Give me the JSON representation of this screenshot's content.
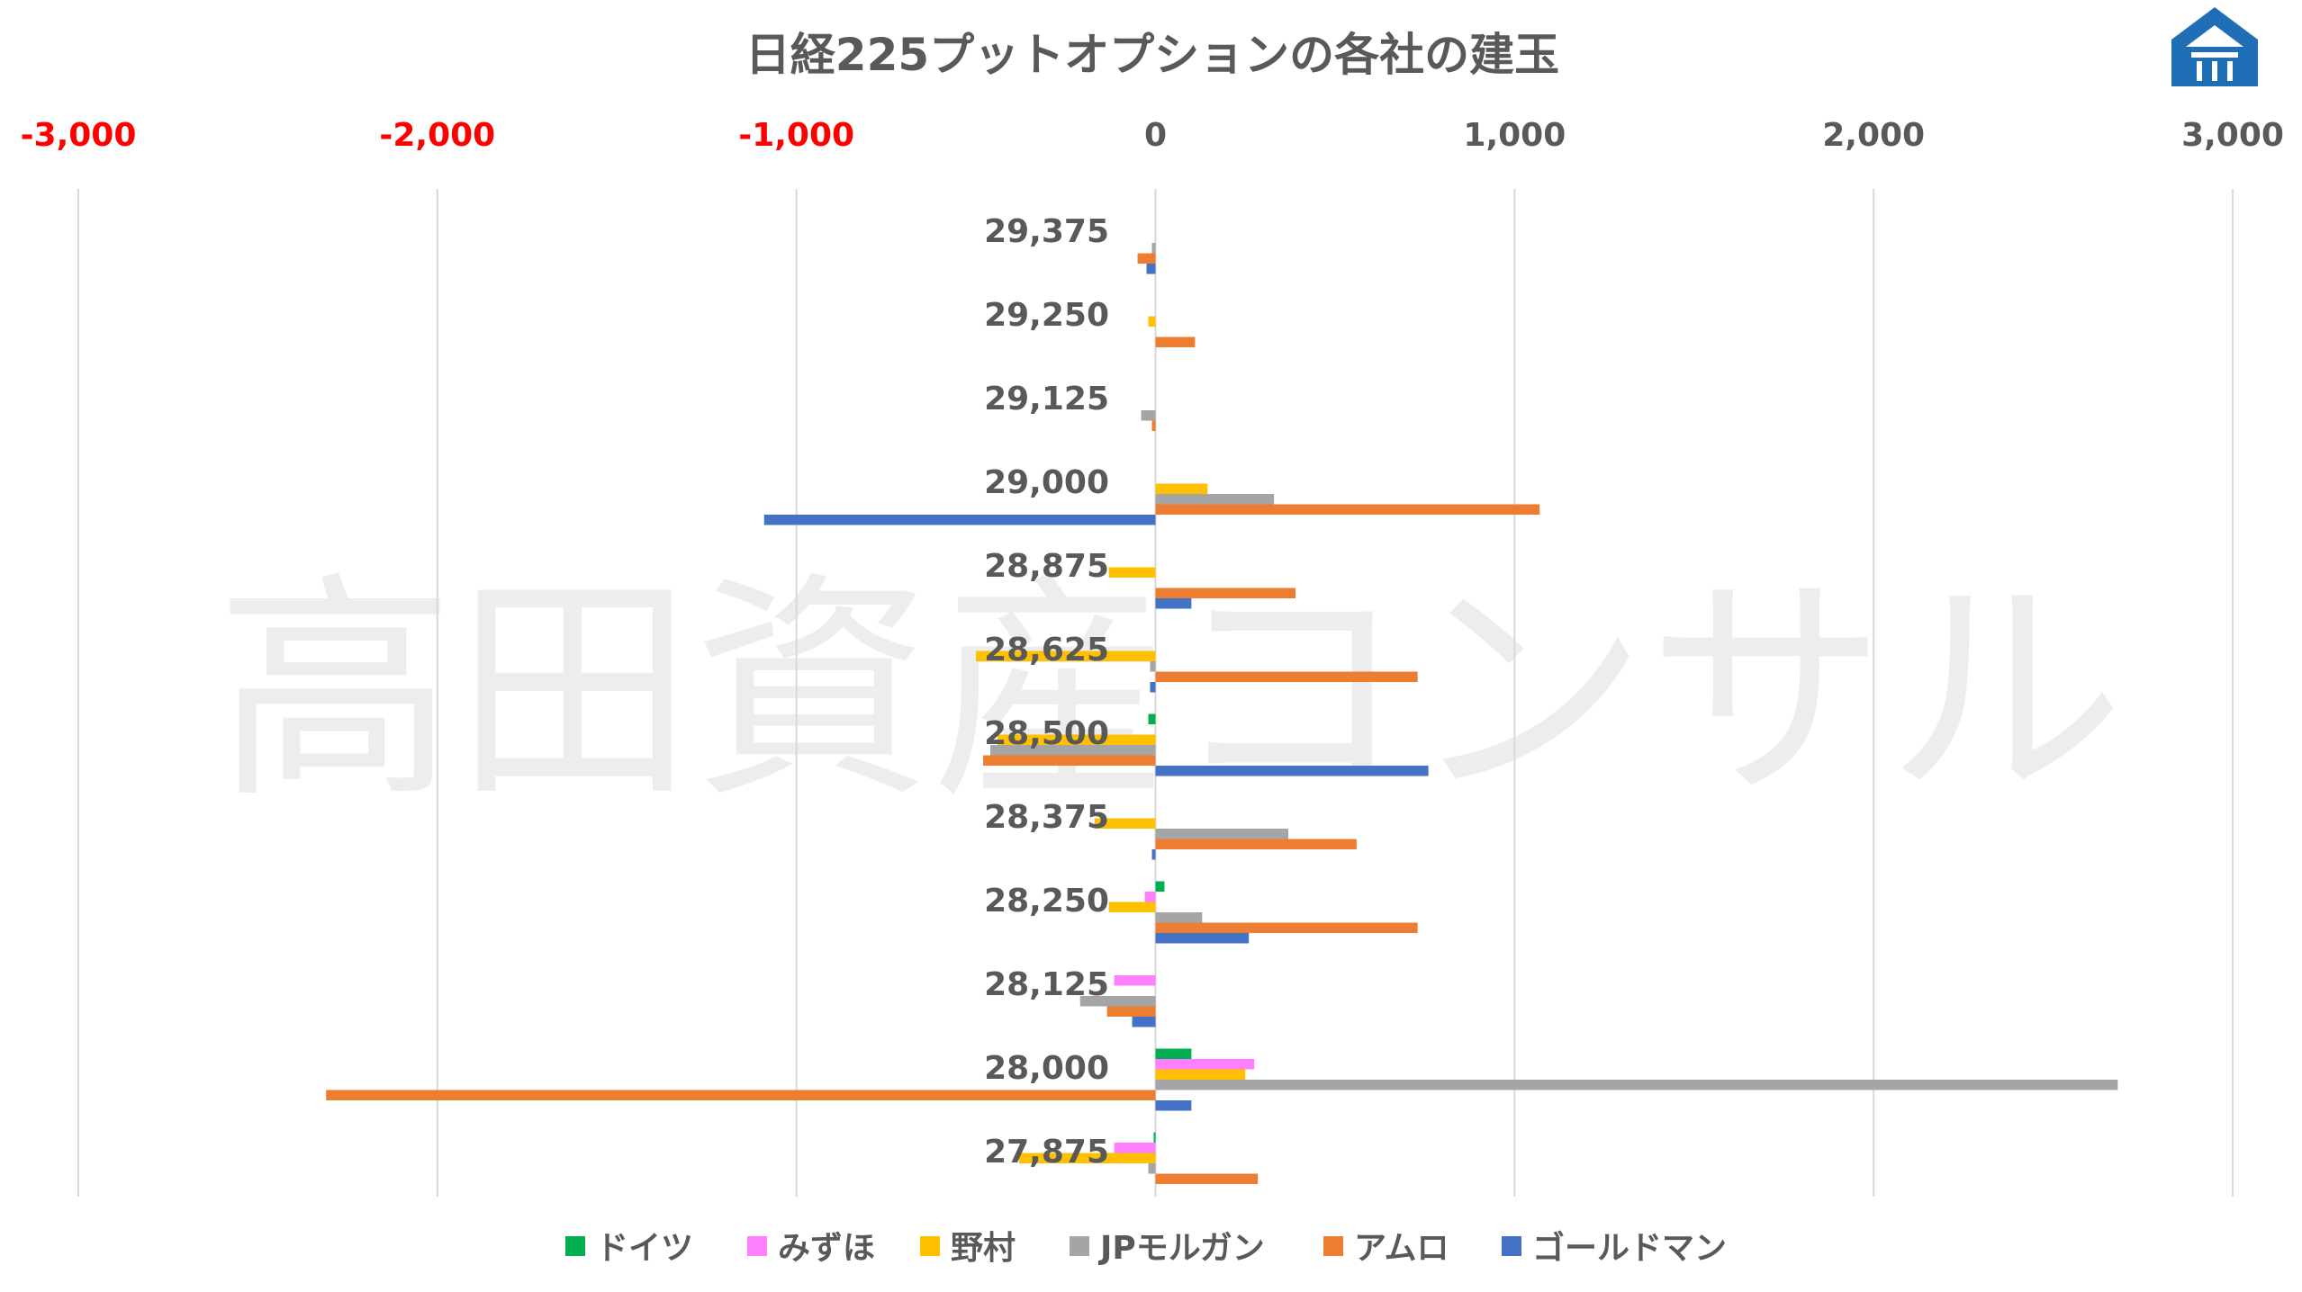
{
  "watermark_text": "高田資産コンサル",
  "chart_data": {
    "type": "bar",
    "orientation": "horizontal",
    "title": "日経225プットオプションの各社の建玉",
    "xlim": [
      -3000,
      3000
    ],
    "x_ticks": [
      -3000,
      -2000,
      -1000,
      0,
      1000,
      2000,
      3000
    ],
    "x_tick_labels": [
      "-3,000",
      "-2,000",
      "-1,000",
      "0",
      "1,000",
      "2,000",
      "3,000"
    ],
    "negative_tick_color": "#ff0000",
    "tick_color": "#595959",
    "grid": "vertical",
    "legend_position": "bottom",
    "categories": [
      "29,375",
      "29,250",
      "29,125",
      "29,000",
      "28,875",
      "28,625",
      "28,500",
      "28,375",
      "28,250",
      "28,125",
      "28,000",
      "27,875"
    ],
    "series": [
      {
        "name": "ドイツ",
        "color": "#00b050",
        "values": [
          0,
          0,
          0,
          0,
          0,
          0,
          -20,
          0,
          25,
          0,
          100,
          -5
        ]
      },
      {
        "name": "みずほ",
        "color": "#ff80ff",
        "values": [
          0,
          0,
          0,
          0,
          0,
          0,
          0,
          0,
          -30,
          -115,
          275,
          -115
        ]
      },
      {
        "name": "野村",
        "color": "#ffc000",
        "values": [
          0,
          -20,
          0,
          145,
          -130,
          -500,
          -440,
          -170,
          -130,
          0,
          250,
          -380
        ]
      },
      {
        "name": "JPモルガン",
        "color": "#a5a5a5",
        "values": [
          -10,
          0,
          -40,
          330,
          0,
          -15,
          -460,
          370,
          130,
          -210,
          2680,
          -20
        ]
      },
      {
        "name": "アムロ",
        "color": "#ed7d31",
        "values": [
          -50,
          110,
          -10,
          1070,
          390,
          730,
          -480,
          560,
          730,
          -135,
          -2310,
          285
        ]
      },
      {
        "name": "ゴールドマン",
        "color": "#4472c4",
        "values": [
          -25,
          0,
          0,
          -1090,
          100,
          -15,
          760,
          -10,
          260,
          -65,
          100,
          0
        ]
      }
    ]
  }
}
